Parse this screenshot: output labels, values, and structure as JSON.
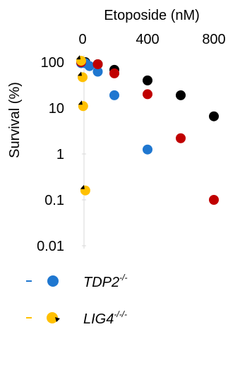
{
  "chart_data": {
    "type": "scatter",
    "title": "",
    "xlabel": "Etoposide (nM)",
    "ylabel": "Survival (%)",
    "x_axis_position": "top",
    "x_ticks": [
      0,
      400,
      800
    ],
    "x_tick_labels": [
      "0",
      "400",
      "800"
    ],
    "xlim": [
      0,
      800
    ],
    "y_scale": "log",
    "y_ticks": [
      100,
      10,
      1,
      0.1,
      0.01
    ],
    "y_tick_labels": [
      "100",
      "10",
      "1",
      "0.1",
      "0.01"
    ],
    "ylim": [
      0.01,
      100
    ],
    "grid": false,
    "legend_placement": "bottom-left",
    "series": [
      {
        "name": "",
        "color": "#000000",
        "marker": "circle",
        "points": [
          [
            0,
            100
          ],
          [
            25,
            100
          ],
          [
            100,
            90
          ],
          [
            200,
            68
          ],
          [
            400,
            40
          ],
          [
            600,
            19
          ],
          [
            800,
            6.6
          ]
        ]
      },
      {
        "name": "TDP2-/-",
        "legend_main": "TDP2",
        "legend_super": "-/-",
        "color": "#1f77d0",
        "marker": "circle",
        "points": [
          [
            0,
            95
          ],
          [
            25,
            95
          ],
          [
            50,
            82
          ],
          [
            100,
            62
          ],
          [
            200,
            19
          ],
          [
            400,
            1.25
          ]
        ]
      },
      {
        "name": "",
        "color": "#c00000",
        "marker": "circle",
        "points": [
          [
            0,
            100
          ],
          [
            100,
            90
          ],
          [
            200,
            57
          ],
          [
            400,
            20
          ],
          [
            600,
            2.2
          ],
          [
            800,
            0.1
          ]
        ]
      },
      {
        "name": "LIG4-/-/-",
        "legend_main": "LIG4",
        "legend_super": "-/-/-",
        "color": "#ffc000",
        "marker": "circle-black-notch",
        "points": [
          [
            0,
            107
          ],
          [
            0,
            47
          ],
          [
            12,
            11
          ],
          [
            25,
            0.16
          ]
        ]
      }
    ]
  },
  "colors": {
    "background": "#ffffff",
    "axis": "#d9d9d9",
    "text": "#000000"
  }
}
